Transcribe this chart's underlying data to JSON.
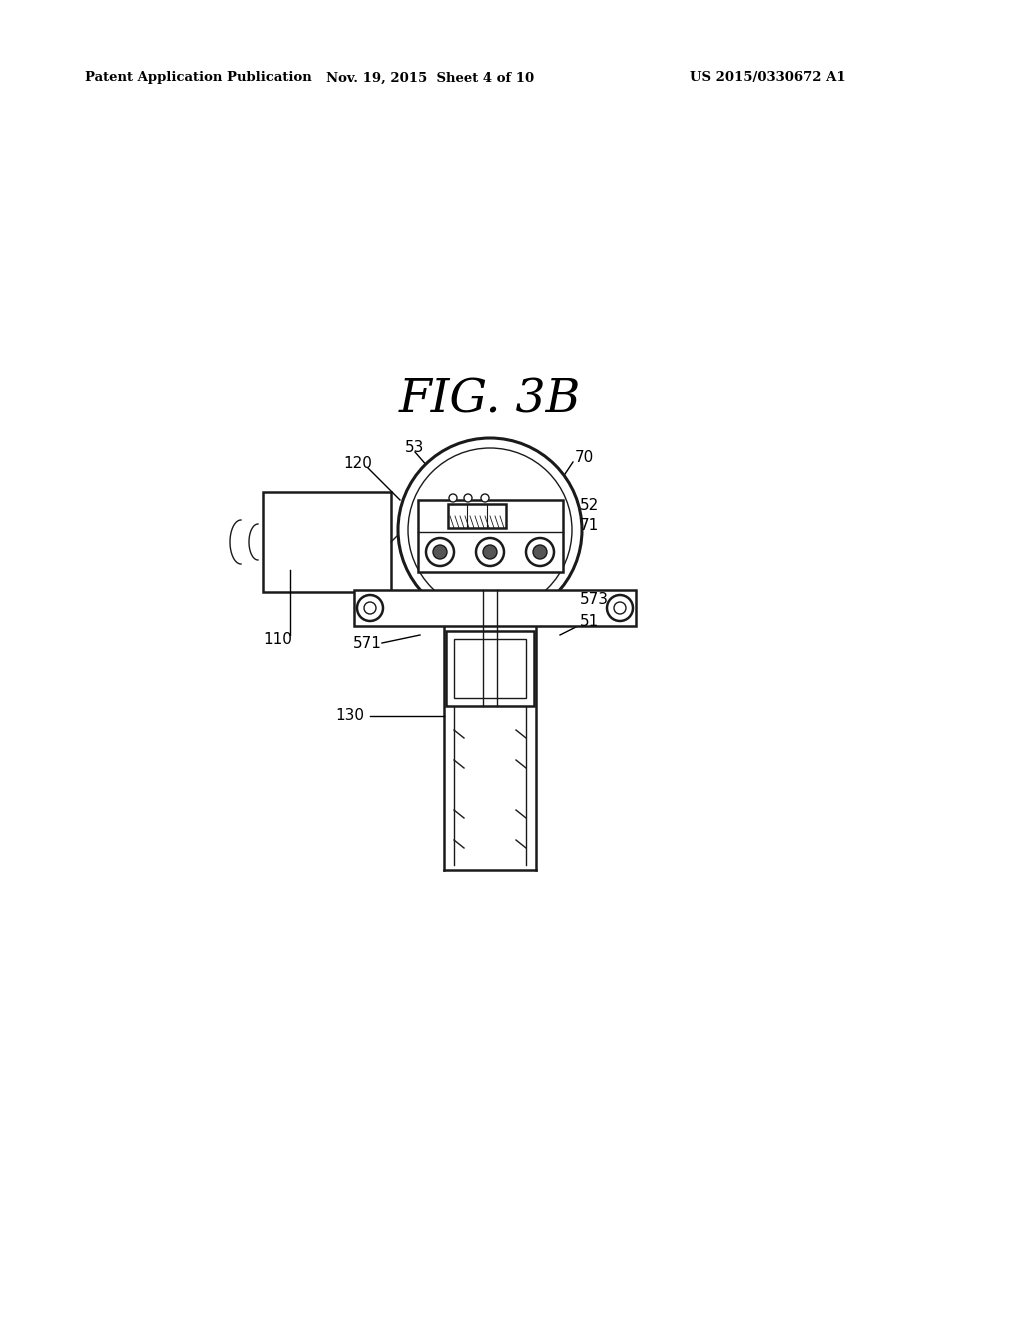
{
  "title": "FIG. 3B",
  "header_left": "Patent Application Publication",
  "header_center": "Nov. 19, 2015  Sheet 4 of 10",
  "header_right": "US 2015/0330672 A1",
  "bg_color": "#ffffff",
  "line_color": "#1a1a1a"
}
